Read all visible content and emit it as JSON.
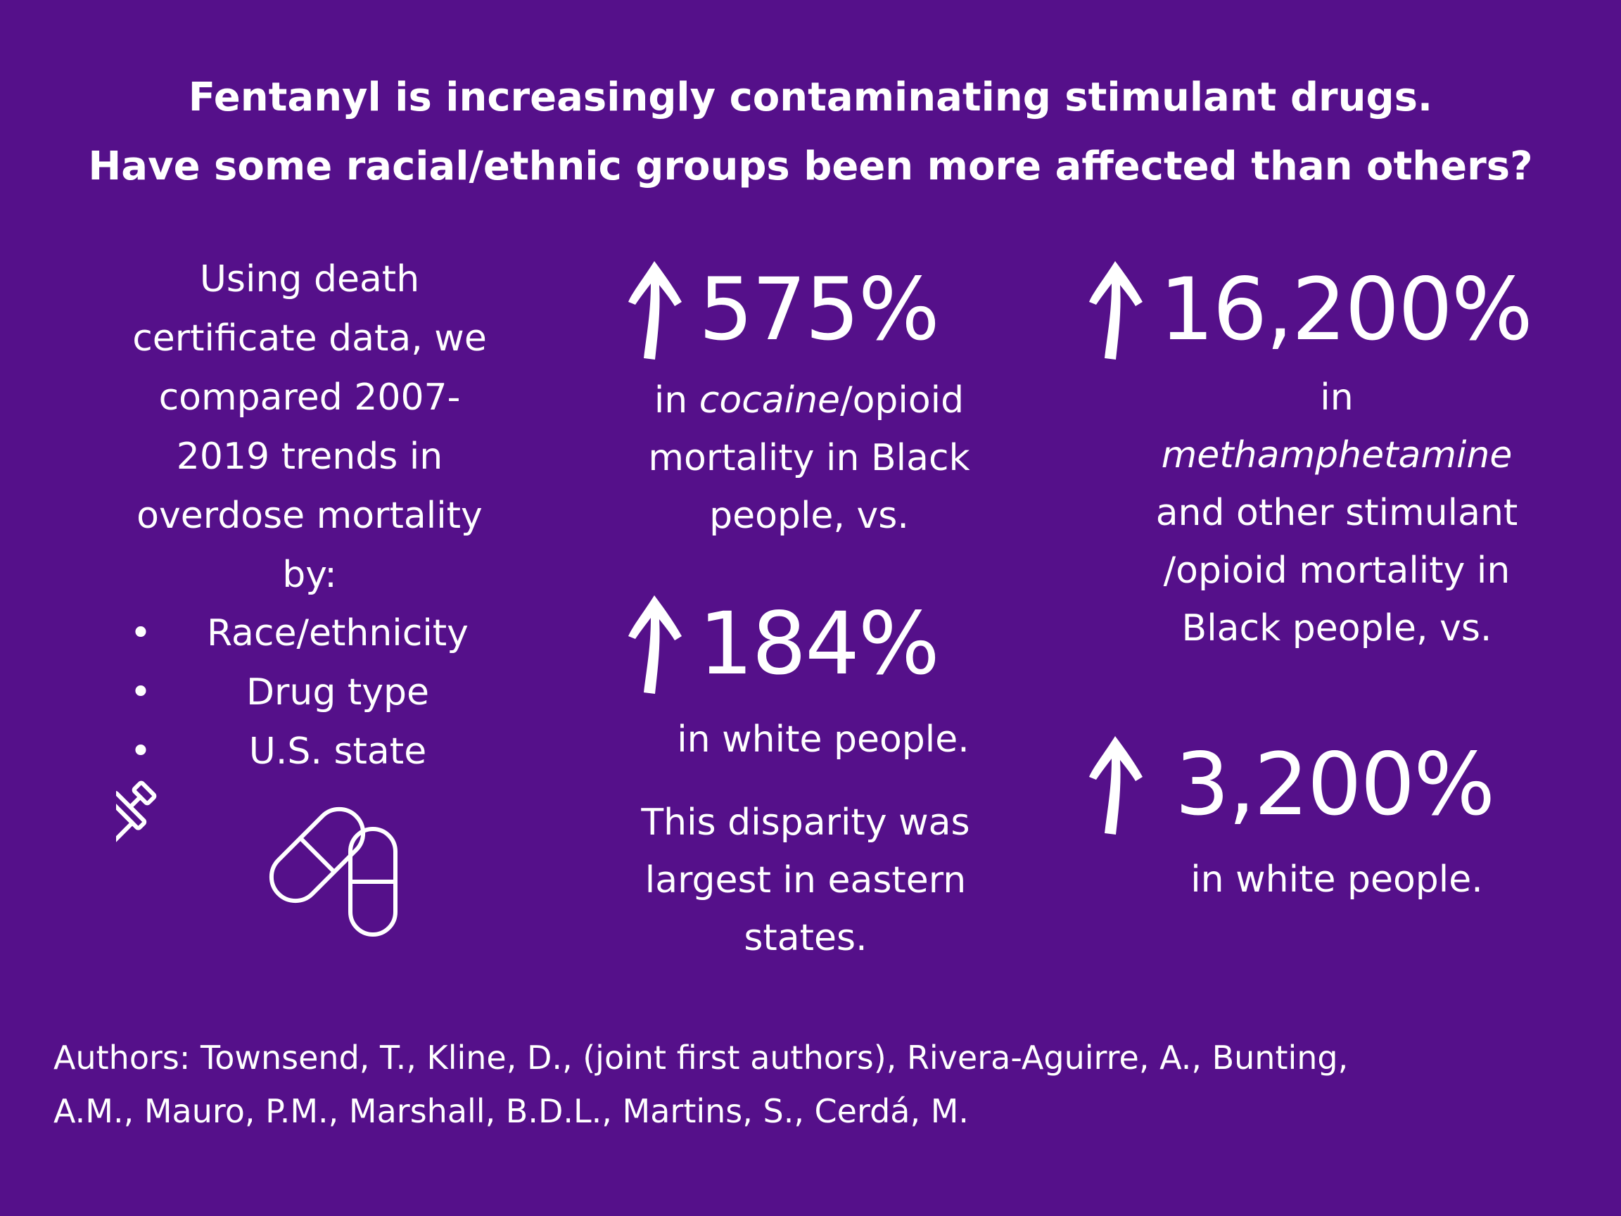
{
  "title": {
    "line1": "Fentanyl is increasingly contaminating stimulant drugs.",
    "line2": "Have some racial/ethnic groups been more affected than others?"
  },
  "intro": {
    "lines": [
      "Using death",
      "certificate data, we",
      "compared 2007-",
      "2019 trends in",
      "overdose mortality",
      "by:"
    ],
    "bullets": [
      {
        "marker": "•",
        "text": "Race/ethnicity"
      },
      {
        "marker": "•",
        "text": "Drug type"
      },
      {
        "marker": "•",
        "text": "U.S. state"
      }
    ]
  },
  "stats": {
    "cocaine_black": {
      "value": "575%",
      "line1_pre": "in ",
      "line1_em": "cocaine",
      "line1_post": "/opioid",
      "line2": "mortality in Black",
      "line3": "people, vs."
    },
    "cocaine_white": {
      "value": "184%",
      "line1": "in white people."
    },
    "disparity": {
      "line1": "This disparity was",
      "line2": "largest in eastern",
      "line3": "states."
    },
    "meth_black": {
      "value": "16,200%",
      "line1": "in",
      "line2_em": "methamphetamine",
      "line3": "and other stimulant",
      "line4": "/opioid mortality in",
      "line5": "Black people, vs."
    },
    "meth_white": {
      "value": "3,200%",
      "line1": "in white people."
    }
  },
  "icons": [
    "up-arrow-icon",
    "syringe-icon",
    "pills-icon"
  ],
  "authors": {
    "line1": "Authors: Townsend, T., Kline, D., (joint first authors), Rivera-Aguirre, A., Bunting,",
    "line2": "A.M., Mauro, P.M., Marshall, B.D.L., Martins, S., Cerdá, M."
  },
  "colors": {
    "background": "#55108a",
    "text": "#ffffff"
  }
}
